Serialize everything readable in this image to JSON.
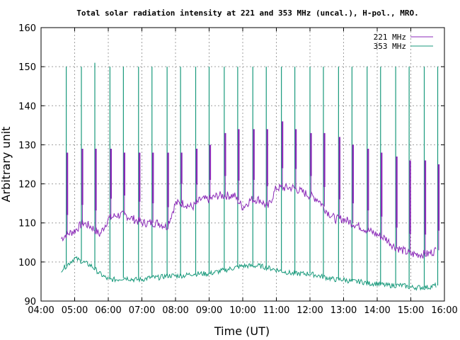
{
  "chart_data": {
    "type": "line",
    "title": "Total solar radiation intensity at 221 and 353 MHz (uncal.), H-pol., MRO.",
    "xlabel": "Time (UT)",
    "ylabel": "Arbitrary unit",
    "xlim": [
      4.0,
      16.0
    ],
    "ylim": [
      90,
      160
    ],
    "x_ticks": [
      "04:00",
      "05:00",
      "06:00",
      "07:00",
      "08:00",
      "09:00",
      "10:00",
      "11:00",
      "12:00",
      "13:00",
      "14:00",
      "15:00",
      "16:00"
    ],
    "y_ticks": [
      90,
      100,
      110,
      120,
      130,
      140,
      150,
      160
    ],
    "grid": true,
    "legend_position": "top-right",
    "calibration_spikes": {
      "times": [
        4.75,
        5.2,
        5.6,
        6.05,
        6.45,
        6.9,
        7.3,
        7.75,
        8.15,
        8.6,
        9.0,
        9.45,
        9.85,
        10.3,
        10.7,
        11.15,
        11.55,
        12.0,
        12.4,
        12.85,
        13.25,
        13.7,
        14.1,
        14.55,
        14.95,
        15.4,
        15.8
      ],
      "peak_221": [
        128,
        129,
        129,
        129,
        128,
        128,
        128,
        128,
        128,
        129,
        130,
        133,
        134,
        134,
        134,
        136,
        134,
        133,
        133,
        132,
        130,
        129,
        128,
        127,
        126,
        126,
        125
      ],
      "peak_353": [
        150,
        150,
        151,
        150,
        150,
        150,
        150,
        150,
        150,
        150,
        150,
        150,
        150,
        150,
        150,
        150,
        150,
        150,
        150,
        150,
        150,
        150,
        150,
        150,
        150,
        150,
        150
      ]
    },
    "series": [
      {
        "name": "221 MHz",
        "color": "#8b2ab8",
        "x": [
          4.6,
          4.75,
          5.0,
          5.25,
          5.5,
          5.75,
          6.0,
          6.25,
          6.5,
          6.75,
          7.0,
          7.25,
          7.5,
          7.75,
          8.0,
          8.25,
          8.5,
          8.75,
          9.0,
          9.25,
          9.5,
          9.75,
          10.0,
          10.25,
          10.5,
          10.75,
          11.0,
          11.25,
          11.5,
          11.75,
          12.0,
          12.25,
          12.5,
          12.75,
          13.0,
          13.25,
          13.5,
          13.75,
          14.0,
          14.25,
          14.5,
          14.75,
          15.0,
          15.25,
          15.5,
          15.75
        ],
        "values": [
          106,
          107,
          108,
          110,
          109,
          107,
          111,
          112,
          112,
          111,
          110,
          110,
          110,
          109,
          115,
          115,
          114,
          116,
          116,
          117,
          117,
          117,
          114,
          116,
          116,
          114,
          119,
          119,
          119,
          118,
          117,
          116,
          113,
          111,
          111,
          110,
          109,
          108,
          107,
          106,
          104,
          103,
          102,
          102,
          102,
          103
        ]
      },
      {
        "name": "353 MHz",
        "color": "#1a9a7c",
        "x": [
          4.6,
          4.75,
          5.0,
          5.25,
          5.5,
          5.75,
          6.0,
          6.25,
          6.5,
          6.75,
          7.0,
          7.25,
          7.5,
          7.75,
          8.0,
          8.25,
          8.5,
          8.75,
          9.0,
          9.25,
          9.5,
          9.75,
          10.0,
          10.25,
          10.5,
          10.75,
          11.0,
          11.25,
          11.5,
          11.75,
          12.0,
          12.25,
          12.5,
          12.75,
          13.0,
          13.25,
          13.5,
          13.75,
          14.0,
          14.25,
          14.5,
          14.75,
          15.0,
          15.25,
          15.5,
          15.75
        ],
        "values": [
          98,
          99,
          101,
          100,
          99,
          97,
          95.5,
          95.5,
          96,
          95.5,
          95.5,
          96,
          96,
          96.5,
          96.5,
          96.5,
          97,
          97,
          97,
          97.5,
          98,
          98.5,
          99,
          99,
          99,
          98.5,
          98,
          97.5,
          97,
          97,
          97,
          96.5,
          96,
          95.5,
          95.5,
          95,
          95,
          94.5,
          94.5,
          94,
          94,
          94,
          93.5,
          93.5,
          93.5,
          94
        ]
      }
    ]
  }
}
